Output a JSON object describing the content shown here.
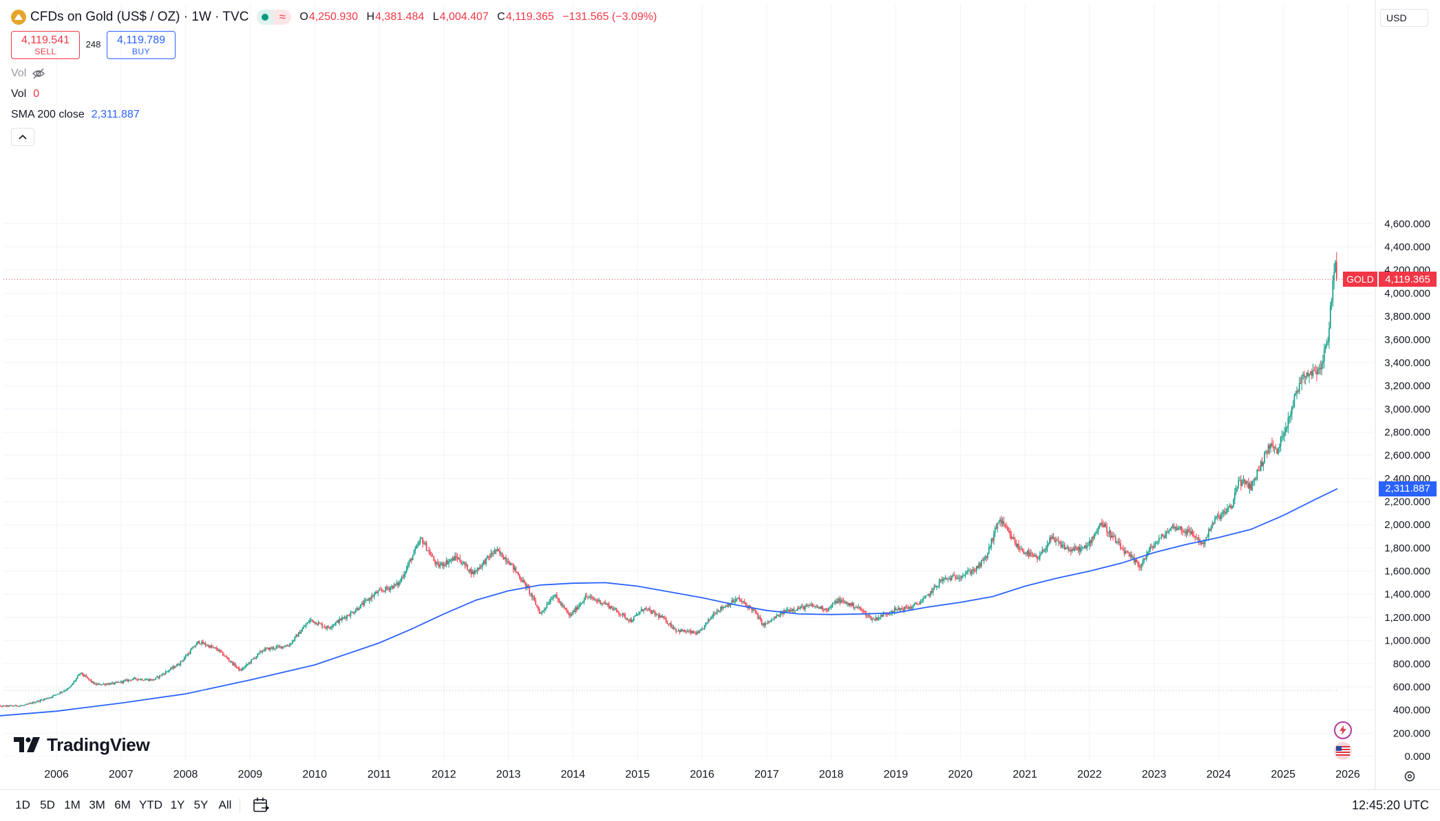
{
  "header": {
    "symbol_title": "CFDs on Gold (US$ / OZ) · 1W · TVC",
    "ohlc": {
      "o_label": "O",
      "o": "4,250.930",
      "h_label": "H",
      "h": "4,381.484",
      "l_label": "L",
      "l": "4,004.407",
      "c_label": "C",
      "c": "4,119.365",
      "change": "−131.565 (−3.09%)"
    },
    "sell_price": "4,119.541",
    "sell_label": "SELL",
    "spread": "248",
    "buy_price": "4,119.789",
    "buy_label": "BUY"
  },
  "indicators": [
    {
      "name": "Vol",
      "value": ""
    },
    {
      "name": "Vol",
      "value": "0"
    },
    {
      "name": "SMA 200 close",
      "value": "2,311.887"
    }
  ],
  "price_scale": {
    "currency": "USD",
    "last_price": "4,119.365",
    "symbol_tag": "GOLD",
    "sma_value": "2,311.887"
  },
  "branding": "TradingView",
  "toolbar": {
    "ranges": [
      "1D",
      "5D",
      "1M",
      "3M",
      "6M",
      "YTD",
      "1Y",
      "5Y",
      "All"
    ],
    "clock": "12:45:20 UTC"
  },
  "colors": {
    "up": "#089981",
    "down": "#f23645",
    "sma": "#2962ff",
    "grid": "#f0f3fa",
    "accent": "#2962ff"
  },
  "chart_data": {
    "type": "candlestick",
    "interval": "1W",
    "x_range": [
      2005.0,
      2025.84
    ],
    "y_ticks": [
      0,
      200,
      400,
      600,
      800,
      1000,
      1200,
      1400,
      1600,
      1800,
      2000,
      2200,
      2400,
      2600,
      2800,
      3000,
      3200,
      3400,
      3600,
      3800,
      4000,
      4200,
      4400,
      4600
    ],
    "y_tick_labels": [
      "0.000",
      "200.000",
      "400.000",
      "600.000",
      "800.000",
      "1,000.000",
      "1,200.000",
      "1,400.000",
      "1,600.000",
      "1,800.000",
      "2,000.000",
      "2,200.000",
      "2,400.000",
      "2,600.000",
      "2,800.000",
      "3,000.000",
      "3,200.000",
      "3,400.000",
      "3,600.000",
      "3,800.000",
      "4,000.000",
      "4,200.000",
      "4,400.000",
      "4,600.000"
    ],
    "x_tick_labels": [
      "2006",
      "2007",
      "2008",
      "2009",
      "2010",
      "2011",
      "2012",
      "2013",
      "2014",
      "2015",
      "2016",
      "2017",
      "2018",
      "2019",
      "2020",
      "2021",
      "2022",
      "2023",
      "2024",
      "2025",
      "2026"
    ],
    "price_path": [
      [
        2005.0,
        430
      ],
      [
        2005.5,
        440
      ],
      [
        2005.9,
        510
      ],
      [
        2006.2,
        590
      ],
      [
        2006.37,
        720
      ],
      [
        2006.6,
        620
      ],
      [
        2006.9,
        630
      ],
      [
        2007.2,
        670
      ],
      [
        2007.5,
        660
      ],
      [
        2007.9,
        800
      ],
      [
        2008.2,
        990
      ],
      [
        2008.5,
        920
      ],
      [
        2008.85,
        740
      ],
      [
        2009.2,
        920
      ],
      [
        2009.6,
        960
      ],
      [
        2009.93,
        1180
      ],
      [
        2010.2,
        1110
      ],
      [
        2010.6,
        1250
      ],
      [
        2010.95,
        1410
      ],
      [
        2011.3,
        1490
      ],
      [
        2011.65,
        1880
      ],
      [
        2011.9,
        1640
      ],
      [
        2012.2,
        1720
      ],
      [
        2012.45,
        1580
      ],
      [
        2012.8,
        1780
      ],
      [
        2013.0,
        1690
      ],
      [
        2013.3,
        1450
      ],
      [
        2013.5,
        1230
      ],
      [
        2013.7,
        1400
      ],
      [
        2013.95,
        1210
      ],
      [
        2014.2,
        1380
      ],
      [
        2014.5,
        1320
      ],
      [
        2014.9,
        1170
      ],
      [
        2015.1,
        1280
      ],
      [
        2015.4,
        1190
      ],
      [
        2015.6,
        1090
      ],
      [
        2015.95,
        1060
      ],
      [
        2016.2,
        1250
      ],
      [
        2016.55,
        1360
      ],
      [
        2016.8,
        1260
      ],
      [
        2016.95,
        1130
      ],
      [
        2017.3,
        1260
      ],
      [
        2017.7,
        1300
      ],
      [
        2017.95,
        1270
      ],
      [
        2018.1,
        1350
      ],
      [
        2018.4,
        1290
      ],
      [
        2018.65,
        1180
      ],
      [
        2018.95,
        1260
      ],
      [
        2019.25,
        1290
      ],
      [
        2019.45,
        1360
      ],
      [
        2019.7,
        1520
      ],
      [
        2020.0,
        1560
      ],
      [
        2020.25,
        1620
      ],
      [
        2020.4,
        1720
      ],
      [
        2020.6,
        2050
      ],
      [
        2020.9,
        1800
      ],
      [
        2021.2,
        1700
      ],
      [
        2021.4,
        1880
      ],
      [
        2021.7,
        1780
      ],
      [
        2021.95,
        1800
      ],
      [
        2022.18,
        2020
      ],
      [
        2022.5,
        1790
      ],
      [
        2022.78,
        1640
      ],
      [
        2022.95,
        1800
      ],
      [
        2023.3,
        1990
      ],
      [
        2023.6,
        1920
      ],
      [
        2023.75,
        1830
      ],
      [
        2023.95,
        2050
      ],
      [
        2024.2,
        2150
      ],
      [
        2024.3,
        2380
      ],
      [
        2024.5,
        2330
      ],
      [
        2024.8,
        2700
      ],
      [
        2024.9,
        2620
      ],
      [
        2025.05,
        2870
      ],
      [
        2025.3,
        3300
      ],
      [
        2025.45,
        3320
      ],
      [
        2025.6,
        3380
      ],
      [
        2025.7,
        3650
      ],
      [
        2025.79,
        4230
      ],
      [
        2025.81,
        4250
      ],
      [
        2025.84,
        4119
      ]
    ],
    "sma200": [
      [
        2005.0,
        345
      ],
      [
        2006.0,
        390
      ],
      [
        2007.0,
        460
      ],
      [
        2008.0,
        540
      ],
      [
        2008.5,
        600
      ],
      [
        2009.0,
        660
      ],
      [
        2010.0,
        790
      ],
      [
        2011.0,
        980
      ],
      [
        2011.5,
        1100
      ],
      [
        2012.0,
        1230
      ],
      [
        2012.5,
        1350
      ],
      [
        2013.0,
        1430
      ],
      [
        2013.5,
        1480
      ],
      [
        2014.0,
        1495
      ],
      [
        2014.5,
        1500
      ],
      [
        2015.0,
        1470
      ],
      [
        2015.5,
        1420
      ],
      [
        2016.0,
        1370
      ],
      [
        2016.5,
        1310
      ],
      [
        2017.0,
        1260
      ],
      [
        2017.5,
        1230
      ],
      [
        2018.0,
        1225
      ],
      [
        2018.5,
        1230
      ],
      [
        2019.0,
        1240
      ],
      [
        2019.5,
        1290
      ],
      [
        2020.0,
        1330
      ],
      [
        2020.5,
        1380
      ],
      [
        2021.0,
        1470
      ],
      [
        2021.5,
        1540
      ],
      [
        2022.0,
        1600
      ],
      [
        2022.5,
        1670
      ],
      [
        2023.0,
        1760
      ],
      [
        2023.5,
        1830
      ],
      [
        2024.0,
        1890
      ],
      [
        2024.5,
        1960
      ],
      [
        2025.0,
        2080
      ],
      [
        2025.5,
        2220
      ],
      [
        2025.84,
        2312
      ]
    ],
    "last_price": 4119.365,
    "sma_last": 2311.887,
    "reference_level": 570
  }
}
